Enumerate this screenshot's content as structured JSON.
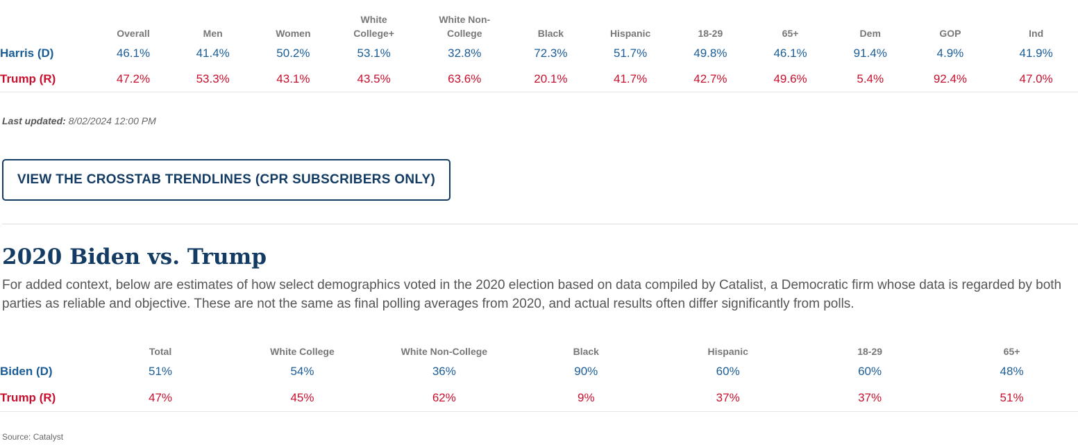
{
  "table2024": {
    "columns": [
      "Overall",
      "Men",
      "Women",
      [
        "White",
        "College+"
      ],
      [
        "White Non-",
        "College"
      ],
      "Black",
      "Hispanic",
      "18-29",
      "65+",
      "Dem",
      "GOP",
      "Ind"
    ],
    "rows": [
      {
        "label": "Harris (D)",
        "party": "dem",
        "values": [
          "46.1%",
          "41.4%",
          "50.2%",
          "53.1%",
          "32.8%",
          "72.3%",
          "51.7%",
          "49.8%",
          "46.1%",
          "91.4%",
          "4.9%",
          "41.9%"
        ]
      },
      {
        "label": "Trump (R)",
        "party": "rep",
        "values": [
          "47.2%",
          "53.3%",
          "43.1%",
          "43.5%",
          "63.6%",
          "20.1%",
          "41.7%",
          "42.7%",
          "49.6%",
          "5.4%",
          "92.4%",
          "47.0%"
        ]
      }
    ]
  },
  "updated": {
    "label": "Last updated:",
    "value": "8/02/2024 12:00 PM"
  },
  "crosstab_button": "VIEW THE CROSSTAB TRENDLINES (CPR SUBSCRIBERS ONLY)",
  "section2020": {
    "title": "2020 Biden vs. Trump",
    "description": "For added context, below are estimates of how select demographics voted in the 2020 election based on data compiled by Catalist, a Democratic firm whose data is regarded by both parties as reliable and objective. These are not the same as final polling averages from 2020, and actual results often differ significantly from polls."
  },
  "table2020": {
    "columns": [
      "Total",
      "White College",
      "White Non-College",
      "Black",
      "Hispanic",
      "18-29",
      "65+"
    ],
    "rows": [
      {
        "label": "Biden (D)",
        "party": "dem",
        "values": [
          "51%",
          "54%",
          "36%",
          "90%",
          "60%",
          "60%",
          "48%"
        ]
      },
      {
        "label": "Trump (R)",
        "party": "rep",
        "values": [
          "47%",
          "45%",
          "62%",
          "9%",
          "37%",
          "37%",
          "51%"
        ]
      }
    ]
  },
  "source": "Source: Catalyst",
  "colors": {
    "dem": "#1a5c96",
    "rep": "#c8102e",
    "heading": "#133b63"
  }
}
